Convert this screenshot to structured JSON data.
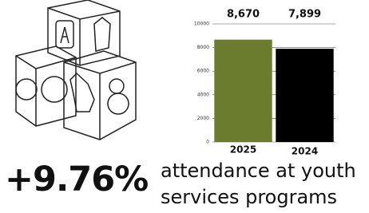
{
  "chart_data": {
    "type": "bar",
    "categories": [
      "2025",
      "2024"
    ],
    "series": [
      {
        "values": [
          8670,
          7899
        ],
        "value_labels": [
          "8,670",
          "7,899"
        ],
        "colors": [
          "#6b7c2f",
          "#000000"
        ]
      }
    ],
    "ylim": [
      0,
      10000
    ],
    "yticks": [
      0,
      2000,
      4000,
      6000,
      8000,
      10000
    ],
    "grid": true,
    "annotations": [
      "+9.76%",
      "attendance at youth services programs"
    ]
  }
}
